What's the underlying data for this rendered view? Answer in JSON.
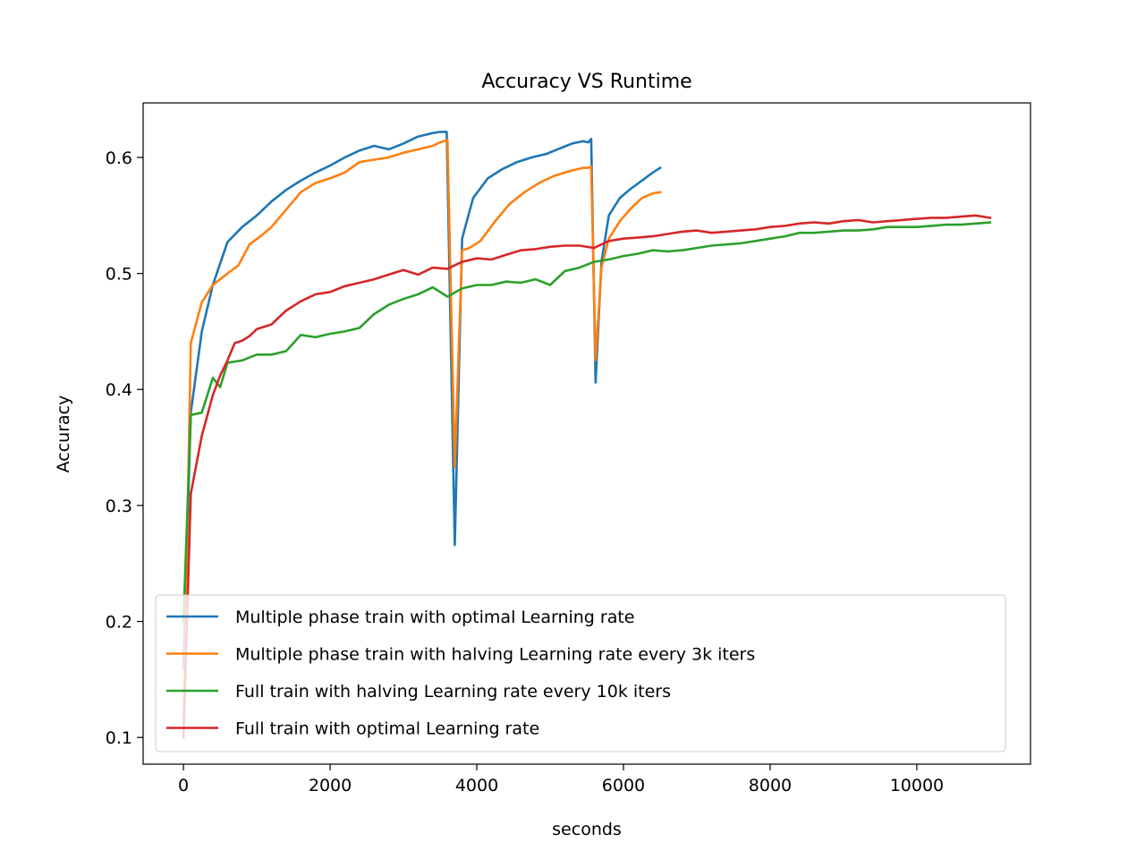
{
  "chart_data": {
    "type": "line",
    "title": "Accuracy VS Runtime",
    "xlabel": "seconds",
    "ylabel": "Accuracy",
    "xlim": [
      -550,
      11550
    ],
    "ylim": [
      0.077,
      0.647
    ],
    "xticks": [
      0,
      2000,
      4000,
      6000,
      8000,
      10000
    ],
    "yticks": [
      0.1,
      0.2,
      0.3,
      0.4,
      0.5,
      0.6
    ],
    "xtick_labels": [
      "0",
      "2000",
      "4000",
      "6000",
      "8000",
      "10000"
    ],
    "ytick_labels": [
      "0.1",
      "0.2",
      "0.3",
      "0.4",
      "0.5",
      "0.6"
    ],
    "grid": false,
    "legend_position": "lower-right",
    "series": [
      {
        "name": "Multiple phase train with optimal Learning rate",
        "color": "#1f77b4",
        "x": [
          0,
          100,
          250,
          400,
          600,
          800,
          1000,
          1200,
          1400,
          1600,
          1800,
          2000,
          2200,
          2400,
          2600,
          2800,
          3000,
          3200,
          3400,
          3500,
          3590,
          3700,
          3800,
          3950,
          4150,
          4350,
          4550,
          4750,
          4950,
          5100,
          5300,
          5450,
          5520,
          5560,
          5620,
          5700,
          5800,
          5950,
          6100,
          6250,
          6400,
          6500
        ],
        "y": [
          0.16,
          0.38,
          0.45,
          0.49,
          0.527,
          0.54,
          0.55,
          0.562,
          0.572,
          0.58,
          0.587,
          0.593,
          0.6,
          0.606,
          0.61,
          0.607,
          0.612,
          0.618,
          0.621,
          0.622,
          0.622,
          0.266,
          0.53,
          0.565,
          0.582,
          0.59,
          0.596,
          0.6,
          0.603,
          0.607,
          0.612,
          0.614,
          0.613,
          0.616,
          0.406,
          0.51,
          0.55,
          0.565,
          0.573,
          0.58,
          0.587,
          0.591
        ]
      },
      {
        "name": "Multiple phase train with halving Learning rate every 3k iters",
        "color": "#ff7f0e",
        "x": [
          0,
          100,
          250,
          400,
          600,
          750,
          900,
          1050,
          1200,
          1400,
          1600,
          1800,
          2000,
          2200,
          2400,
          2600,
          2800,
          3000,
          3200,
          3400,
          3500,
          3600,
          3700,
          3800,
          3900,
          4050,
          4250,
          4450,
          4650,
          4850,
          5050,
          5250,
          5450,
          5520,
          5560,
          5620,
          5700,
          5800,
          5950,
          6100,
          6250,
          6400,
          6500
        ],
        "y": [
          0.1,
          0.44,
          0.475,
          0.49,
          0.5,
          0.507,
          0.525,
          0.532,
          0.54,
          0.555,
          0.57,
          0.578,
          0.582,
          0.587,
          0.596,
          0.598,
          0.6,
          0.604,
          0.607,
          0.61,
          0.613,
          0.615,
          0.333,
          0.52,
          0.522,
          0.528,
          0.545,
          0.56,
          0.57,
          0.578,
          0.584,
          0.588,
          0.591,
          0.591,
          0.592,
          0.425,
          0.505,
          0.53,
          0.545,
          0.556,
          0.565,
          0.569,
          0.57
        ]
      },
      {
        "name": "Full train with halving Learning rate every 10k iters",
        "color": "#2ca02c",
        "x": [
          0,
          100,
          250,
          400,
          500,
          600,
          800,
          1000,
          1200,
          1400,
          1600,
          1800,
          2000,
          2200,
          2400,
          2600,
          2800,
          3000,
          3200,
          3400,
          3600,
          3800,
          4000,
          4200,
          4400,
          4600,
          4800,
          5000,
          5200,
          5400,
          5600,
          5800,
          6000,
          6200,
          6400,
          6600,
          6800,
          7000,
          7200,
          7400,
          7600,
          7800,
          8000,
          8200,
          8400,
          8600,
          8800,
          9000,
          9200,
          9400,
          9600,
          9800,
          10000,
          10200,
          10400,
          10600,
          10800,
          11000
        ],
        "y": [
          0.2,
          0.378,
          0.38,
          0.41,
          0.402,
          0.423,
          0.425,
          0.43,
          0.43,
          0.433,
          0.447,
          0.445,
          0.448,
          0.45,
          0.453,
          0.465,
          0.473,
          0.478,
          0.482,
          0.488,
          0.48,
          0.487,
          0.49,
          0.49,
          0.493,
          0.492,
          0.495,
          0.49,
          0.502,
          0.505,
          0.51,
          0.512,
          0.515,
          0.517,
          0.52,
          0.519,
          0.52,
          0.522,
          0.524,
          0.525,
          0.526,
          0.528,
          0.53,
          0.532,
          0.535,
          0.535,
          0.536,
          0.537,
          0.537,
          0.538,
          0.54,
          0.54,
          0.54,
          0.541,
          0.542,
          0.542,
          0.543,
          0.544
        ]
      },
      {
        "name": "Full train with optimal Learning rate",
        "color": "#d62728",
        "x": [
          0,
          100,
          250,
          400,
          500,
          600,
          700,
          800,
          900,
          1000,
          1200,
          1400,
          1600,
          1800,
          2000,
          2200,
          2400,
          2600,
          2800,
          3000,
          3200,
          3400,
          3600,
          3800,
          4000,
          4200,
          4400,
          4600,
          4800,
          5000,
          5200,
          5400,
          5600,
          5800,
          6000,
          6200,
          6400,
          6600,
          6800,
          7000,
          7200,
          7400,
          7600,
          7800,
          8000,
          8200,
          8400,
          8600,
          8800,
          9000,
          9200,
          9400,
          9600,
          9800,
          10000,
          10200,
          10400,
          10600,
          10800,
          11000
        ],
        "y": [
          0.1,
          0.31,
          0.36,
          0.395,
          0.412,
          0.425,
          0.44,
          0.442,
          0.446,
          0.452,
          0.456,
          0.468,
          0.476,
          0.482,
          0.484,
          0.489,
          0.492,
          0.495,
          0.499,
          0.503,
          0.499,
          0.505,
          0.504,
          0.51,
          0.513,
          0.512,
          0.516,
          0.52,
          0.521,
          0.523,
          0.524,
          0.524,
          0.522,
          0.528,
          0.53,
          0.531,
          0.532,
          0.534,
          0.536,
          0.537,
          0.535,
          0.536,
          0.537,
          0.538,
          0.54,
          0.541,
          0.543,
          0.544,
          0.543,
          0.545,
          0.546,
          0.544,
          0.545,
          0.546,
          0.547,
          0.548,
          0.548,
          0.549,
          0.55,
          0.548
        ]
      }
    ]
  }
}
